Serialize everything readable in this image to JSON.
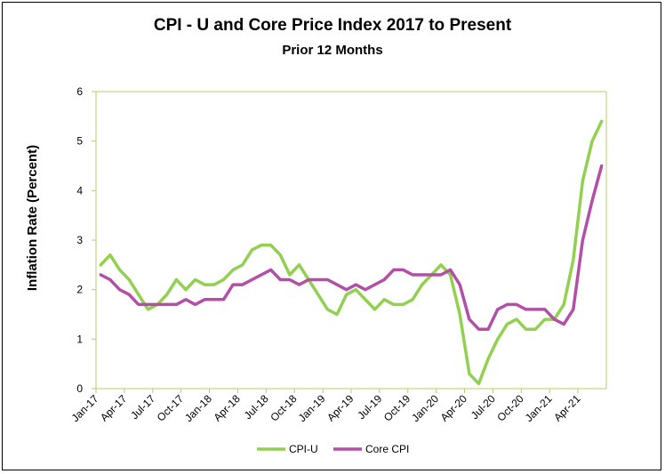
{
  "colors": {
    "cpi_u": "#92d050",
    "core_cpi": "#b34fa6",
    "axis": "#b5cc6a"
  },
  "chart_data": {
    "type": "line",
    "title": "CPI - U and Core Price Index 2017 to Present",
    "subtitle": "Prior 12 Months",
    "ylabel": "Inflation Rate (Percent)",
    "xlabel": "",
    "ylim": [
      0,
      6
    ],
    "yticks": [
      0,
      1,
      2,
      3,
      4,
      5,
      6
    ],
    "grid": false,
    "legend": "bottom",
    "categories": [
      "Jan-17",
      "Feb-17",
      "Mar-17",
      "Apr-17",
      "May-17",
      "Jun-17",
      "Jul-17",
      "Aug-17",
      "Sep-17",
      "Oct-17",
      "Nov-17",
      "Dec-17",
      "Jan-18",
      "Feb-18",
      "Mar-18",
      "Apr-18",
      "May-18",
      "Jun-18",
      "Jul-18",
      "Aug-18",
      "Sep-18",
      "Oct-18",
      "Nov-18",
      "Dec-18",
      "Jan-19",
      "Feb-19",
      "Mar-19",
      "Apr-19",
      "May-19",
      "Jun-19",
      "Jul-19",
      "Aug-19",
      "Sep-19",
      "Oct-19",
      "Nov-19",
      "Dec-19",
      "Jan-20",
      "Feb-20",
      "Mar-20",
      "Apr-20",
      "May-20",
      "Jun-20",
      "Jul-20",
      "Aug-20",
      "Sep-20",
      "Oct-20",
      "Nov-20",
      "Dec-20",
      "Jan-21",
      "Feb-21",
      "Mar-21",
      "Apr-21",
      "May-21",
      "Jun-21"
    ],
    "tick_labels": [
      "Jan-17",
      "Apr-17",
      "Jul-17",
      "Oct-17",
      "Jan-18",
      "Apr-18",
      "Jul-18",
      "Oct-18",
      "Jan-19",
      "Apr-19",
      "Jul-19",
      "Oct-19",
      "Jan-20",
      "Apr-20",
      "Jul-20",
      "Oct-20",
      "Jan-21",
      "Apr-21"
    ],
    "series": [
      {
        "name": "CPI-U",
        "values": [
          2.5,
          2.7,
          2.4,
          2.2,
          1.9,
          1.6,
          1.7,
          1.9,
          2.2,
          2.0,
          2.2,
          2.1,
          2.1,
          2.2,
          2.4,
          2.5,
          2.8,
          2.9,
          2.9,
          2.7,
          2.3,
          2.5,
          2.2,
          1.9,
          1.6,
          1.5,
          1.9,
          2.0,
          1.8,
          1.6,
          1.8,
          1.7,
          1.7,
          1.8,
          2.1,
          2.3,
          2.5,
          2.3,
          1.5,
          0.3,
          0.1,
          0.6,
          1.0,
          1.3,
          1.4,
          1.2,
          1.2,
          1.4,
          1.4,
          1.7,
          2.6,
          4.2,
          5.0,
          5.4
        ]
      },
      {
        "name": "Core CPI",
        "values": [
          2.3,
          2.2,
          2.0,
          1.9,
          1.7,
          1.7,
          1.7,
          1.7,
          1.7,
          1.8,
          1.7,
          1.8,
          1.8,
          1.8,
          2.1,
          2.1,
          2.2,
          2.3,
          2.4,
          2.2,
          2.2,
          2.1,
          2.2,
          2.2,
          2.2,
          2.1,
          2.0,
          2.1,
          2.0,
          2.1,
          2.2,
          2.4,
          2.4,
          2.3,
          2.3,
          2.3,
          2.3,
          2.4,
          2.1,
          1.4,
          1.2,
          1.2,
          1.6,
          1.7,
          1.7,
          1.6,
          1.6,
          1.6,
          1.4,
          1.3,
          1.6,
          3.0,
          3.8,
          4.5
        ]
      }
    ]
  }
}
